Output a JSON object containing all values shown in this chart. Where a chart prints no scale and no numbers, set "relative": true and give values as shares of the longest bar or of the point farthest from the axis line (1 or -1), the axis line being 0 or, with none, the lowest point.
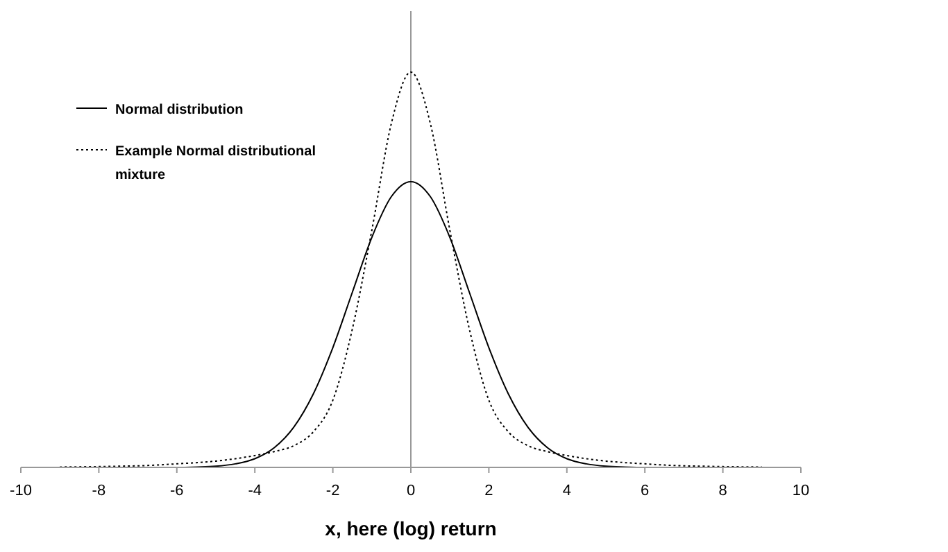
{
  "chart_data": {
    "type": "line",
    "relative": true,
    "xlabel": "x, here (log) return",
    "xlim": [
      -10,
      10
    ],
    "xticks": [
      -10,
      -8,
      -6,
      -4,
      -2,
      0,
      2,
      4,
      6,
      8,
      10
    ],
    "legend": "top left",
    "marker": "none",
    "x": [
      -9,
      -8.5,
      -8,
      -7.5,
      -7,
      -6.5,
      -6,
      -5.5,
      -5,
      -4.5,
      -4,
      -3.5,
      -3,
      -2.5,
      -2,
      -1.5,
      -1,
      -0.5,
      0,
      0.5,
      1,
      1.5,
      2,
      2.5,
      3,
      3.5,
      4,
      4.5,
      5,
      5.5,
      6,
      6.5,
      7,
      7.5,
      8,
      8.5,
      9
    ],
    "series": [
      {
        "name": "Normal distribution",
        "color": "#000000",
        "line_style": "solid",
        "values": [
          0,
          0,
          0,
          0,
          0,
          0,
          0,
          0.001,
          0.003,
          0.009,
          0.022,
          0.05,
          0.102,
          0.186,
          0.303,
          0.443,
          0.582,
          0.685,
          0.723,
          0.685,
          0.582,
          0.443,
          0.303,
          0.186,
          0.102,
          0.05,
          0.022,
          0.009,
          0.003,
          0.001,
          0,
          0,
          0,
          0,
          0,
          0,
          0
        ]
      },
      {
        "name": "Example Normal distributional mixture",
        "color": "#000000",
        "line_style": "dotted",
        "values": [
          0.001,
          0.0015,
          0.002,
          0.003,
          0.004,
          0.006,
          0.009,
          0.012,
          0.016,
          0.022,
          0.03,
          0.04,
          0.055,
          0.09,
          0.17,
          0.35,
          0.6,
          0.87,
          1,
          0.87,
          0.6,
          0.35,
          0.17,
          0.09,
          0.055,
          0.04,
          0.03,
          0.022,
          0.016,
          0.012,
          0.009,
          0.006,
          0.004,
          0.003,
          0.002,
          0.0015,
          0.001
        ]
      }
    ]
  }
}
